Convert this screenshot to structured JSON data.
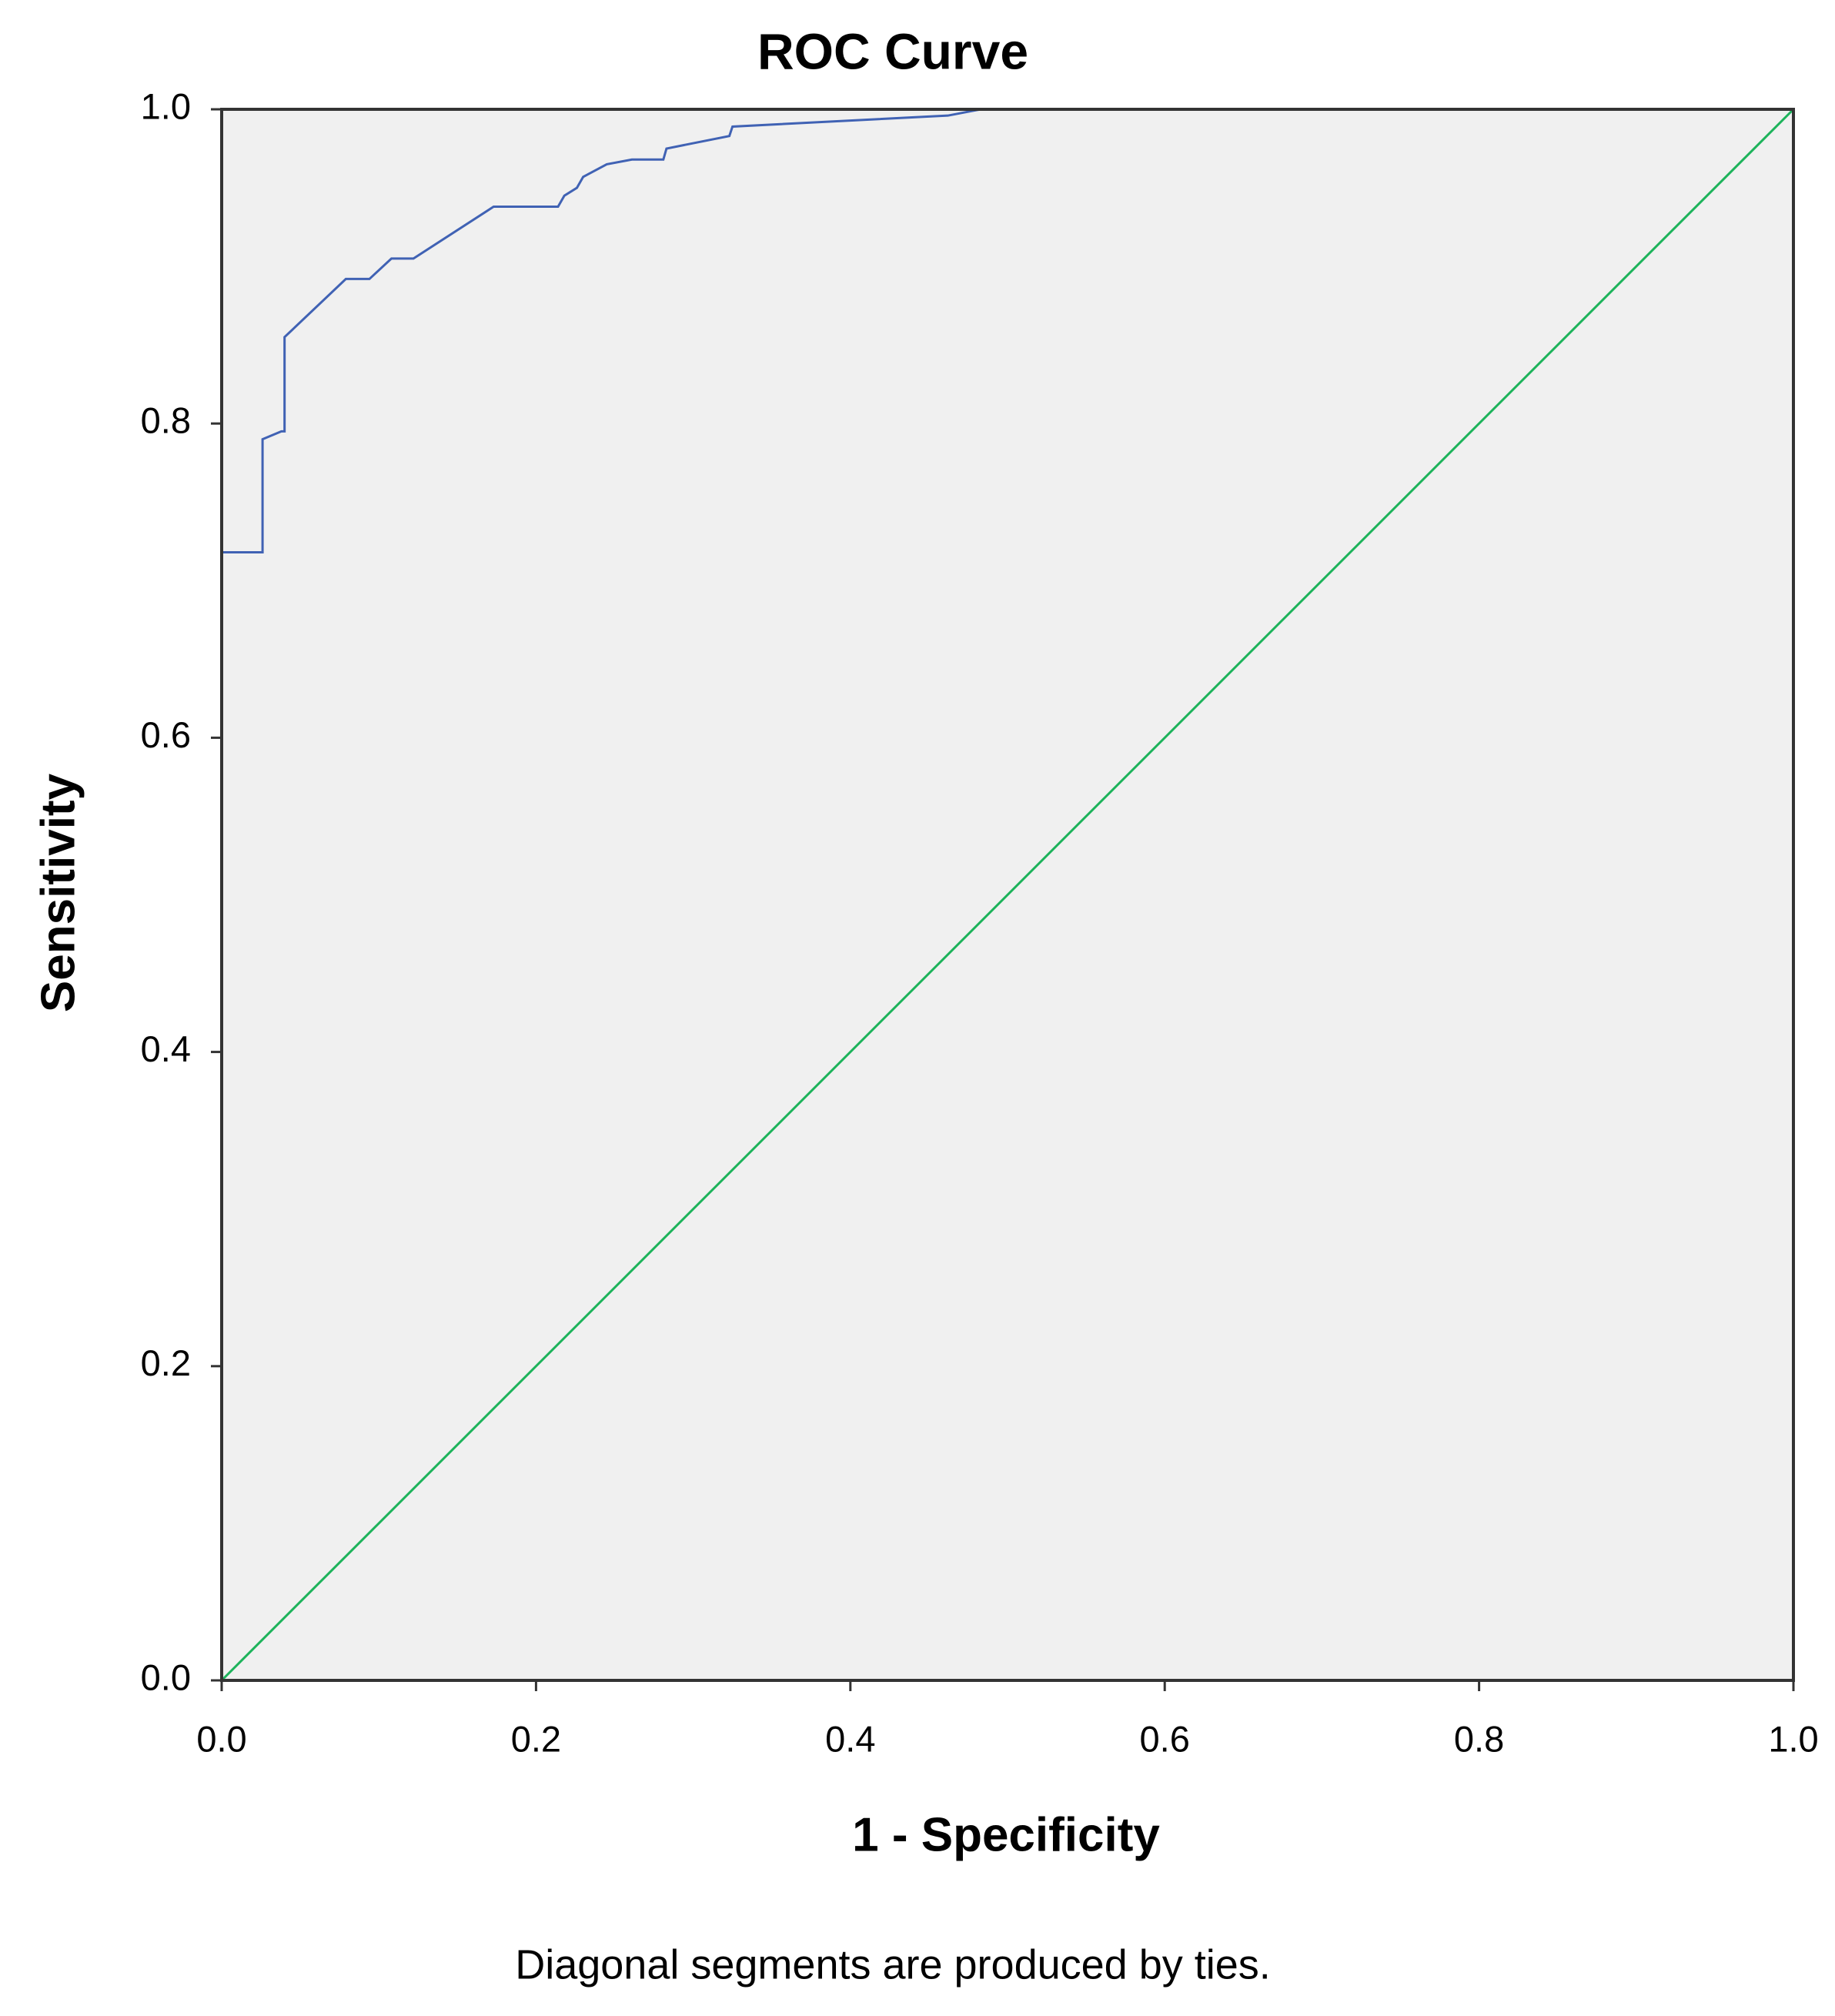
{
  "chart_data": {
    "type": "line",
    "title": "ROC Curve",
    "xlabel": "1 - Specificity",
    "ylabel": "Sensitivity",
    "note": "Diagonal segments are produced by ties.",
    "background": "#f0f0f0",
    "xlim": [
      0,
      1
    ],
    "ylim": [
      0,
      1
    ],
    "xticks": [
      {
        "value": 0,
        "label": "0.0"
      },
      0.2,
      0.4,
      0.6,
      0.8,
      {
        "value": 1,
        "label": "1.0"
      }
    ],
    "yticks": [
      {
        "value": 0,
        "label": "0.0"
      },
      0.2,
      0.4,
      0.6,
      0.8,
      {
        "value": 1,
        "label": "1.0"
      }
    ],
    "series": [
      {
        "color": "#4062b4",
        "x": [
          0,
          0,
          0.026,
          0.026,
          0.038,
          0.04,
          0.04,
          0.079,
          0.094,
          0.108,
          0.122,
          0.173,
          0.214,
          0.218,
          0.226,
          0.23,
          0.245,
          0.261,
          0.281,
          0.283,
          0.323,
          0.325,
          0.462,
          0.483,
          1
        ],
        "values": [
          0,
          0.718,
          0.718,
          0.79,
          0.795,
          0.795,
          0.855,
          0.892,
          0.892,
          0.905,
          0.905,
          0.938,
          0.938,
          0.945,
          0.95,
          0.957,
          0.965,
          0.968,
          0.968,
          0.975,
          0.983,
          0.989,
          0.996,
          1,
          1
        ]
      },
      {
        "color": "#1db35b",
        "x": [
          0,
          1
        ],
        "values": [
          0,
          1
        ]
      }
    ]
  }
}
